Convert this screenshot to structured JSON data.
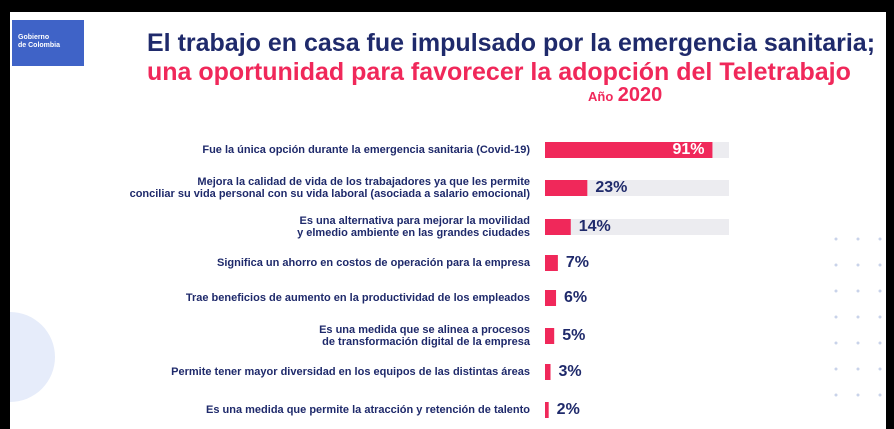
{
  "logo": "Gobierno\nde Colombia",
  "chart_data": {
    "type": "hbar",
    "title": "El trabajo en casa fue impulsado por la emergencia sanitaria;",
    "subtitle": "una oportunidad para favorecer la adopción del Teletrabajo",
    "header_prefix": "Año",
    "header_year": "2020",
    "categories": [
      "Fue la única opción durante la emergencia sanitaria (Covid-19)",
      "Mejora la calidad de vida de los trabajadores ya que les permite\nconciliar su vida personal con su vida laboral (asociada a salario emocional)",
      "Es una alternativa para mejorar la movilidad\ny elmedio ambiente en las grandes ciudades",
      "Significa un ahorro en costos de operación para la empresa",
      "Trae beneficios de aumento en la productividad de los empleados",
      "Es una medida que se alinea a procesos\nde transformación digital de la  empresa",
      "Permite tener mayor diversidad en los equipos de las distintas áreas",
      "Es una medida que permite la atracción y retención de talento"
    ],
    "values": [
      91,
      23,
      14,
      7,
      6,
      5,
      3,
      2
    ],
    "value_labels": [
      "91%",
      "23%",
      "14%",
      "7%",
      "6%",
      "5%",
      "3%",
      "2%"
    ],
    "color": "#f0285a",
    "track_color": "#ececf0",
    "xlim": [
      0,
      100
    ]
  }
}
